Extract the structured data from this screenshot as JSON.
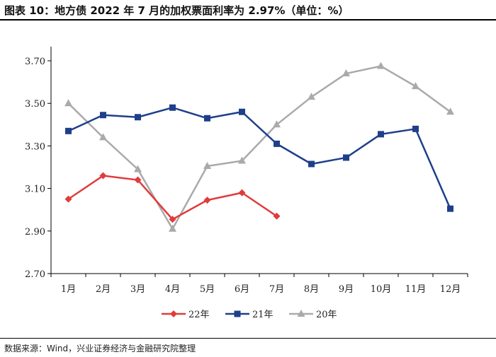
{
  "header": {
    "title": "图表 10：地方债 2022 年 7 月的加权票面利率为 2.97%（单位：%）"
  },
  "footer": {
    "source": "数据来源：Wind，兴业证券经济与金融研究院整理"
  },
  "chart_data": {
    "type": "line",
    "categories": [
      "1月",
      "2月",
      "3月",
      "4月",
      "5月",
      "6月",
      "7月",
      "8月",
      "9月",
      "10月",
      "11月",
      "12月"
    ],
    "ylim": [
      2.7,
      3.7
    ],
    "yticks": [
      "2.70",
      "2.90",
      "3.10",
      "3.30",
      "3.50",
      "3.70"
    ],
    "grid": false,
    "legend_position": "bottom",
    "series": [
      {
        "name": "22年",
        "color": "#e03c3c",
        "marker": "diamond",
        "values": [
          3.05,
          3.16,
          3.14,
          2.955,
          3.045,
          3.08,
          2.97,
          null,
          null,
          null,
          null,
          null
        ]
      },
      {
        "name": "21年",
        "color": "#1f3f8a",
        "marker": "square",
        "values": [
          3.37,
          3.445,
          3.435,
          3.48,
          3.43,
          3.46,
          3.31,
          3.215,
          3.245,
          3.355,
          3.38,
          3.005
        ]
      },
      {
        "name": "20年",
        "color": "#aaaaaa",
        "marker": "triangle",
        "values": [
          3.5,
          3.34,
          3.19,
          2.91,
          3.205,
          3.23,
          3.4,
          3.53,
          3.64,
          3.675,
          3.58,
          3.46
        ]
      }
    ]
  }
}
